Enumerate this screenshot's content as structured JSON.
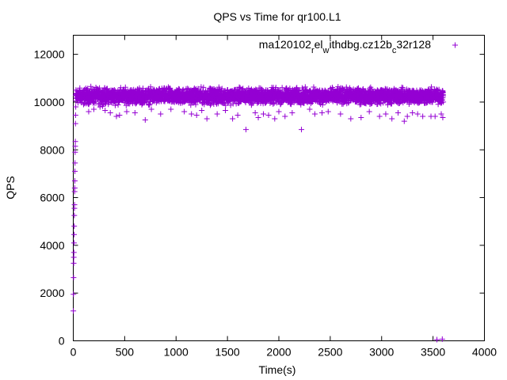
{
  "chart_data": {
    "type": "scatter",
    "title": "QPS vs Time for qr100.L1",
    "xlabel": "Time(s)",
    "ylabel": "QPS",
    "xlim": [
      0,
      4000
    ],
    "ylim": [
      0,
      12800
    ],
    "xticks": [
      0,
      500,
      1000,
      1500,
      2000,
      2500,
      3000,
      3500,
      4000
    ],
    "yticks": [
      0,
      2000,
      4000,
      6000,
      8000,
      10000,
      12000
    ],
    "grid": false,
    "legend_position": "top-right",
    "series": [
      {
        "name": "ma120102_rel_withdbg.cz12b_c32r128",
        "color": "#9400d3",
        "marker": "+",
        "ramp_up": {
          "x": [
            1,
            2,
            3,
            4,
            5,
            6,
            7,
            8,
            9,
            10,
            11,
            12,
            13,
            14,
            15,
            16,
            17,
            18,
            19,
            20,
            21,
            22,
            24,
            26
          ],
          "y": [
            1250,
            1950,
            2650,
            3250,
            3500,
            3700,
            4100,
            4450,
            4800,
            5250,
            5550,
            5700,
            6250,
            6400,
            6700,
            7100,
            7450,
            7900,
            8150,
            8350,
            9100,
            9450,
            9800,
            10050
          ]
        },
        "steady_state": {
          "x_start": 25,
          "x_end": 3600,
          "interval": 1,
          "center": 10250,
          "upper": 10700,
          "lower": 9800
        },
        "outliers": {
          "x": [
            100,
            150,
            200,
            260,
            310,
            360,
            420,
            450,
            520,
            600,
            700,
            760,
            850,
            950,
            1080,
            1150,
            1200,
            1250,
            1300,
            1400,
            1480,
            1550,
            1600,
            1680,
            1770,
            1800,
            1850,
            1900,
            1960,
            2000,
            2060,
            2130,
            2220,
            2300,
            2350,
            2420,
            2480,
            2600,
            2700,
            2800,
            2880,
            2980,
            3040,
            3100,
            3160,
            3220,
            3250,
            3300,
            3350,
            3400,
            3480,
            3520,
            3580
          ],
          "y": [
            9900,
            9600,
            9700,
            9800,
            9650,
            9550,
            9400,
            9450,
            9600,
            9550,
            9250,
            9700,
            9500,
            9700,
            9600,
            9500,
            9450,
            9650,
            9300,
            9500,
            9650,
            9300,
            9450,
            8850,
            9550,
            9350,
            9500,
            9450,
            9300,
            9600,
            9400,
            9550,
            8850,
            9700,
            9500,
            9550,
            9600,
            9500,
            9300,
            9350,
            9600,
            9400,
            9500,
            9300,
            9550,
            9200,
            9400,
            9550,
            9500,
            9400,
            9400,
            9400,
            9500
          ]
        },
        "tail": {
          "x": [
            3538,
            3590,
            3595
          ],
          "y": [
            50,
            70,
            9350
          ]
        }
      }
    ]
  }
}
